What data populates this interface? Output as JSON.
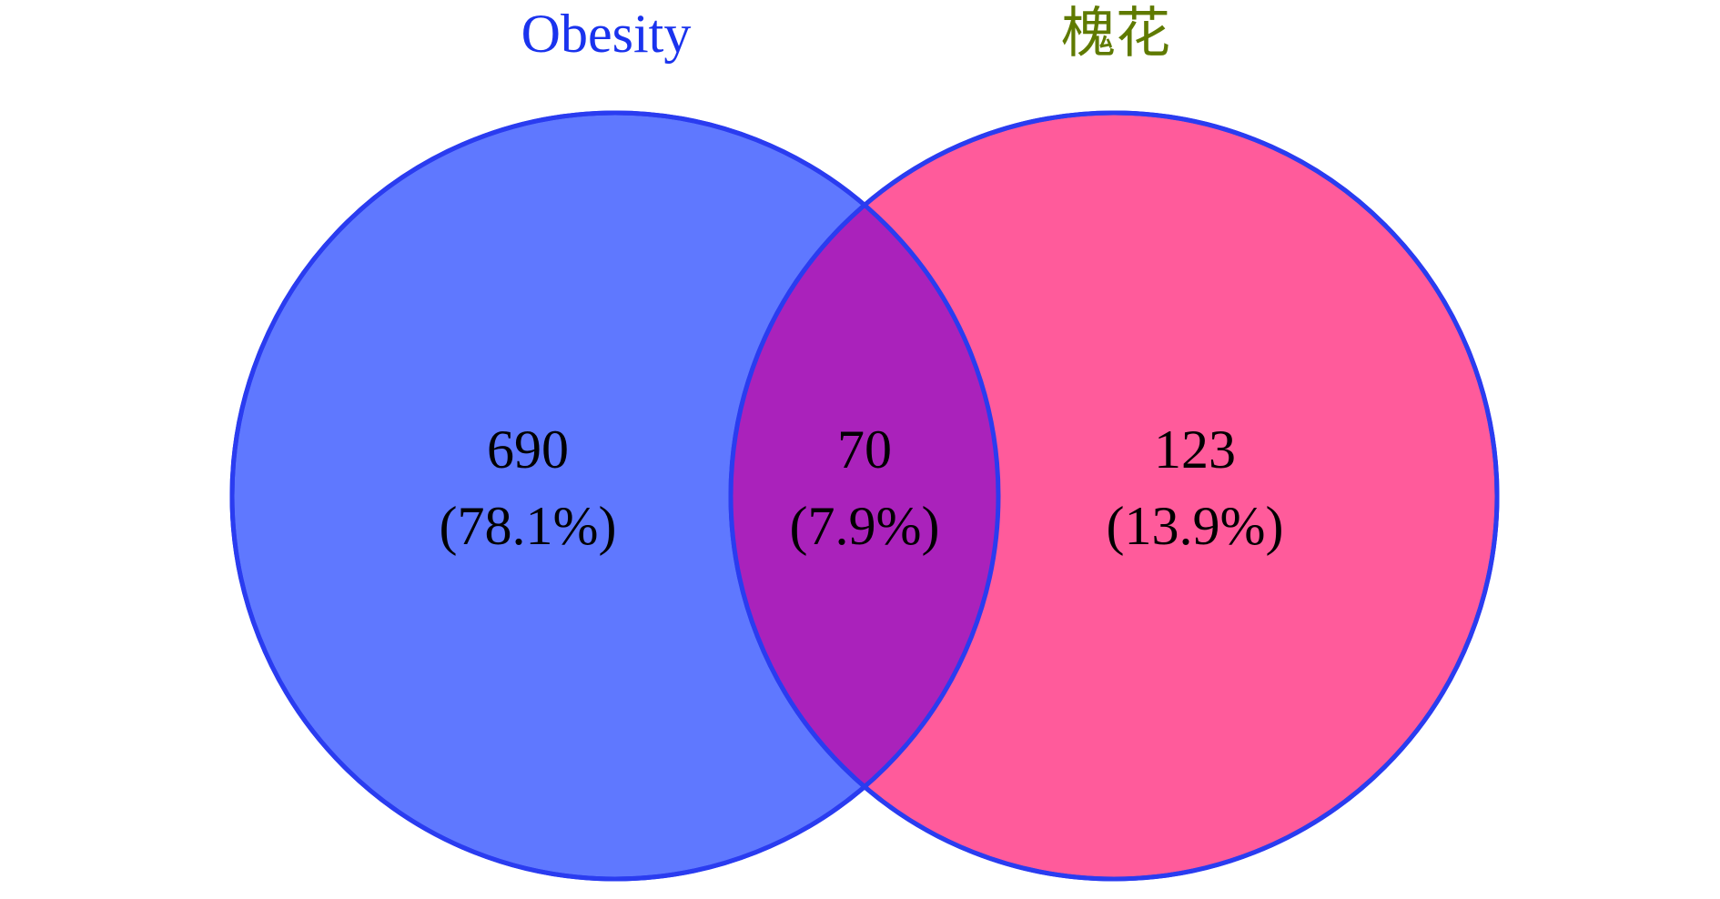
{
  "chart_data": {
    "type": "venn",
    "sets": [
      {
        "name": "Obesity",
        "fill": "#5f78ff",
        "title_color": "#1a33ee"
      },
      {
        "name": "槐花",
        "fill": "#ff5b9b",
        "title_color": "#5f7a00"
      }
    ],
    "outline_color": "#2a3cf0",
    "intersection_fill": "#aa22bb",
    "regions": [
      {
        "id": "obesity_only",
        "count": "690",
        "percent": "(78.1%)"
      },
      {
        "id": "both",
        "count": "70",
        "percent": "(7.9%)"
      },
      {
        "id": "huaihua_only",
        "count": "123",
        "percent": "(13.9%)"
      }
    ]
  }
}
